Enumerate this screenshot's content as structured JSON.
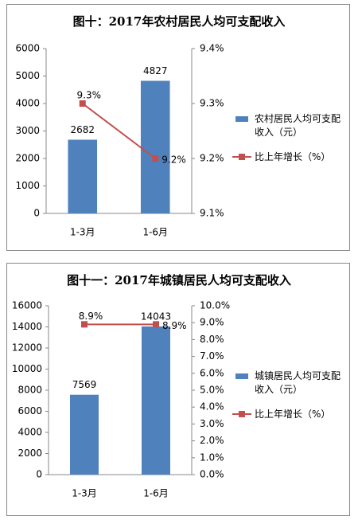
{
  "chart_data": [
    {
      "type": "bar_line",
      "title": "图十：2017年农村居民人均可支配收入",
      "categories": [
        "1-3月",
        "1-6月"
      ],
      "series": [
        {
          "name": "农村居民人均可支配收入（元）",
          "color": "#4f81bd",
          "type": "bar",
          "values": [
            2682,
            4827
          ]
        },
        {
          "name": "比上年增长（%）",
          "color": "#c0504d",
          "type": "line",
          "axis": "y2",
          "values": [
            9.3,
            9.2
          ],
          "value_labels": [
            "9.3%",
            "9.2%"
          ]
        }
      ],
      "ylim": [
        0,
        6000
      ],
      "yticks": [
        0,
        1000,
        2000,
        3000,
        4000,
        5000,
        6000
      ],
      "y2lim": [
        9.1,
        9.4
      ],
      "y2ticks": [
        {
          "value": 9.1,
          "label": "9.1%"
        },
        {
          "value": 9.2,
          "label": "9.2%"
        },
        {
          "value": 9.3,
          "label": "9.3%"
        },
        {
          "value": 9.4,
          "label": "9.4%"
        }
      ],
      "grid": false,
      "legend": "right"
    },
    {
      "type": "bar_line",
      "title": "图十一：2017年城镇居民人均可支配收入",
      "categories": [
        "1-3月",
        "1-6月"
      ],
      "series": [
        {
          "name": "城镇居民人均可支配收入（元）",
          "color": "#4f81bd",
          "type": "bar",
          "values": [
            7569,
            14043
          ]
        },
        {
          "name": "比上年增长（%）",
          "color": "#c0504d",
          "type": "line",
          "axis": "y2",
          "values": [
            8.9,
            8.9
          ],
          "value_labels": [
            "8.9%",
            "8.9%"
          ]
        }
      ],
      "ylim": [
        0,
        16000
      ],
      "yticks": [
        0,
        2000,
        4000,
        6000,
        8000,
        10000,
        12000,
        14000,
        16000
      ],
      "y2lim": [
        0,
        10
      ],
      "y2ticks": [
        {
          "value": 0,
          "label": "0.0%"
        },
        {
          "value": 1,
          "label": "1.0%"
        },
        {
          "value": 2,
          "label": "2.0%"
        },
        {
          "value": 3,
          "label": "3.0%"
        },
        {
          "value": 4,
          "label": "4.0%"
        },
        {
          "value": 5,
          "label": "5.0%"
        },
        {
          "value": 6,
          "label": "6.0%"
        },
        {
          "value": 7,
          "label": "7.0%"
        },
        {
          "value": 8,
          "label": "8.0%"
        },
        {
          "value": 9,
          "label": "9.0%"
        },
        {
          "value": 10,
          "label": "10.0%"
        }
      ],
      "grid": false,
      "legend": "right"
    }
  ]
}
